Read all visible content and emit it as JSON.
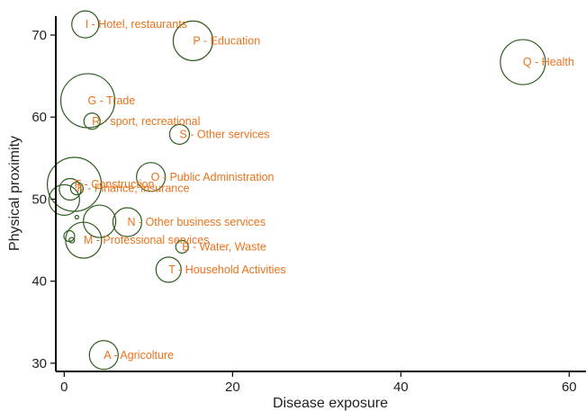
{
  "chart_data": {
    "type": "scatter",
    "xlabel": "Disease exposure",
    "ylabel": "Physical proximity",
    "xlim": [
      -1,
      62
    ],
    "ylim": [
      29,
      72.3
    ],
    "xticks": [
      0,
      20,
      40,
      60
    ],
    "yticks": [
      30,
      40,
      50,
      60,
      70
    ],
    "grid": false,
    "points": [
      {
        "label": "I - Hotel, restaurants",
        "x": 2.5,
        "y": 71.3,
        "size": 15
      },
      {
        "label": "P - Education",
        "x": 15.3,
        "y": 69.3,
        "size": 22
      },
      {
        "label": "Q - Health",
        "x": 54.5,
        "y": 66.7,
        "size": 25
      },
      {
        "label": "G - Trade",
        "x": 2.8,
        "y": 62.0,
        "size": 30
      },
      {
        "label": "R - sport, recreational",
        "x": 3.3,
        "y": 59.5,
        "size": 9
      },
      {
        "label": "S - Other services",
        "x": 13.7,
        "y": 57.9,
        "size": 11
      },
      {
        "label": "F - Construction",
        "x": 1.2,
        "y": 51.8,
        "size": 30
      },
      {
        "label": "O - Public Administration",
        "x": 10.3,
        "y": 52.7,
        "size": 16
      },
      {
        "label": "K - Finance, insurance",
        "x": 1.5,
        "y": 51.3,
        "size": 7
      },
      {
        "label": "",
        "x": 0.7,
        "y": 51.2,
        "size": 12
      },
      {
        "label": "",
        "x": 0.0,
        "y": 49.9,
        "size": 17
      },
      {
        "label": "",
        "x": 1.5,
        "y": 47.8,
        "size": 2
      },
      {
        "label": "",
        "x": 4.2,
        "y": 47.3,
        "size": 18
      },
      {
        "label": "N - Other business services",
        "x": 7.5,
        "y": 47.2,
        "size": 16
      },
      {
        "label": "",
        "x": 0.6,
        "y": 45.5,
        "size": 6
      },
      {
        "label": "M - Professional services",
        "x": 2.3,
        "y": 45.0,
        "size": 20
      },
      {
        "label": "",
        "x": 0.9,
        "y": 45.0,
        "size": 3
      },
      {
        "label": "E - Water, Waste",
        "x": 14.0,
        "y": 44.2,
        "size": 7
      },
      {
        "label": "T - Household Activities",
        "x": 12.4,
        "y": 41.4,
        "size": 14
      },
      {
        "label": "A - Agricolture",
        "x": 4.7,
        "y": 31.0,
        "size": 16
      }
    ]
  }
}
